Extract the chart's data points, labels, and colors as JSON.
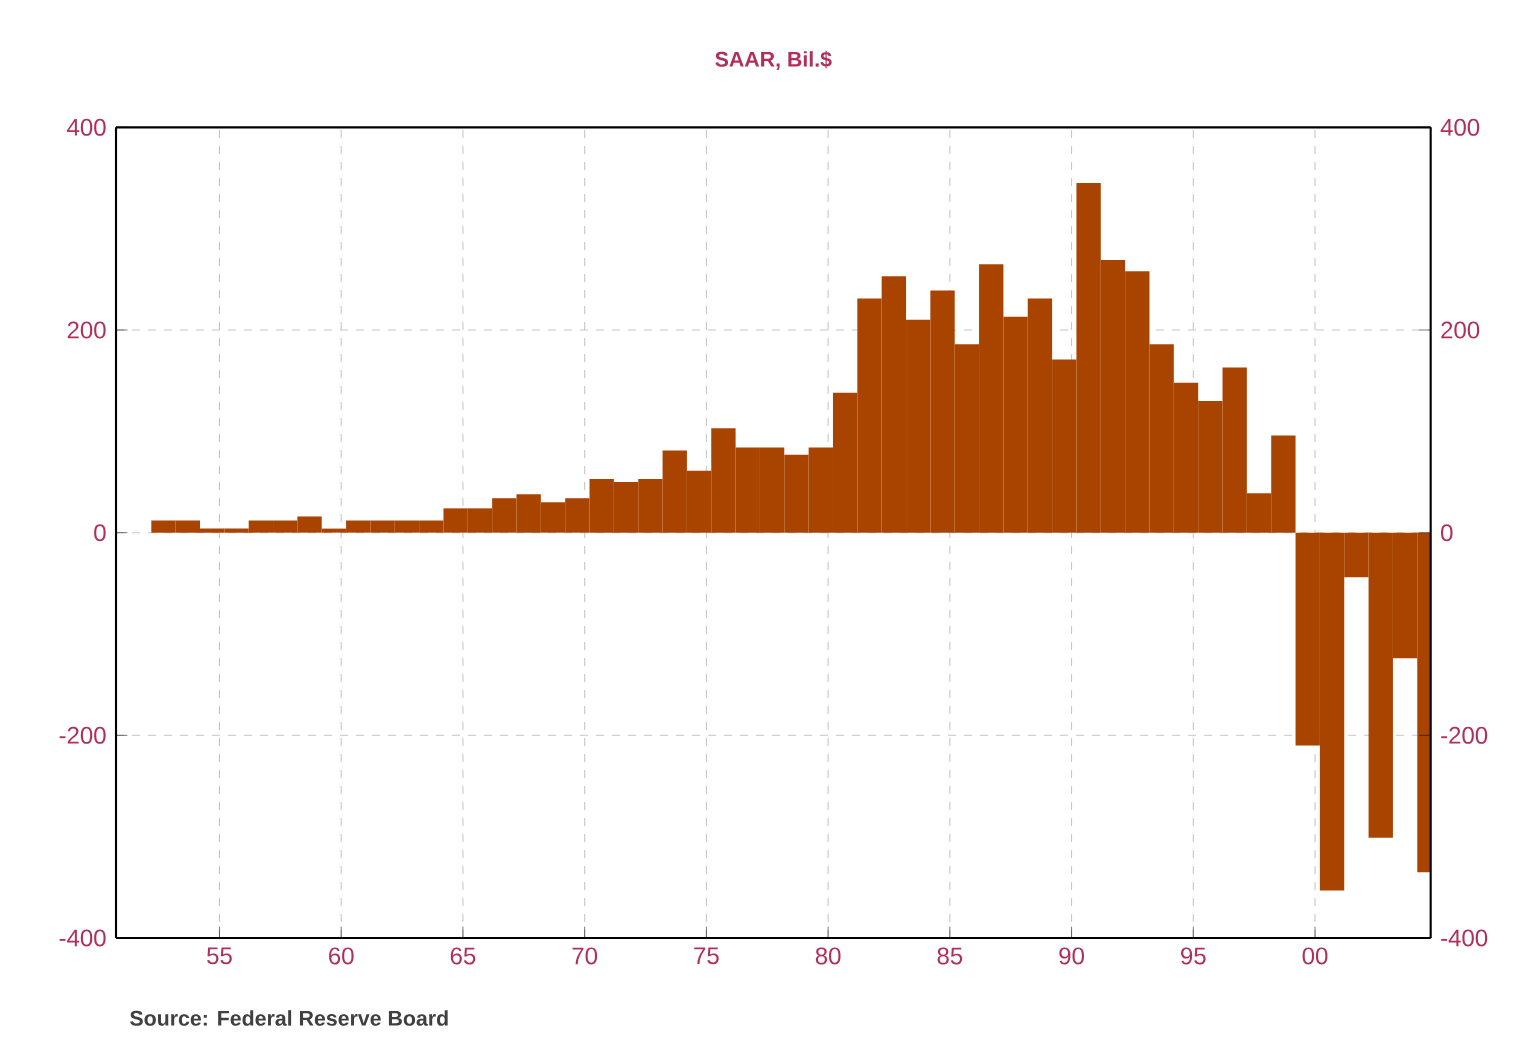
{
  "chart_data": {
    "type": "bar",
    "title": "SAAR, Bil.$",
    "annotations": [
      "Source:  Federal Reserve Board"
    ],
    "x": [
      1952.7,
      1953.7,
      1954.7,
      1955.7,
      1956.7,
      1957.7,
      1958.7,
      1959.7,
      1960.7,
      1961.7,
      1962.7,
      1963.7,
      1964.7,
      1965.7,
      1966.7,
      1967.7,
      1968.7,
      1969.7,
      1970.7,
      1971.7,
      1972.7,
      1973.7,
      1974.7,
      1975.7,
      1976.7,
      1977.7,
      1978.7,
      1979.7,
      1980.7,
      1981.7,
      1982.7,
      1983.7,
      1984.7,
      1985.7,
      1986.7,
      1987.7,
      1988.7,
      1989.7,
      1990.7,
      1991.7,
      1992.7,
      1993.7,
      1994.7,
      1995.7,
      1996.7,
      1997.7,
      1998.7,
      1999.7,
      2000.7,
      2001.7,
      2002.7,
      2003.7,
      2004.7
    ],
    "values": [
      12,
      12,
      4,
      4,
      12,
      12,
      16,
      4,
      12,
      12,
      12,
      12,
      24,
      24,
      34,
      38,
      30,
      34,
      53,
      50,
      53,
      81,
      61,
      103,
      84,
      84,
      77,
      84,
      138,
      231,
      253,
      210,
      239,
      186,
      265,
      213,
      231,
      171,
      345,
      269,
      258,
      186,
      148,
      130,
      163,
      39,
      96,
      -210,
      -353,
      -44,
      -301,
      -124,
      -335
    ],
    "color": "#a94400",
    "xlim": [
      1950.75,
      2004.75
    ],
    "xticks": [
      {
        "value": 1955,
        "label": "55"
      },
      {
        "value": 1960,
        "label": "60"
      },
      {
        "value": 1965,
        "label": "65"
      },
      {
        "value": 1970,
        "label": "70"
      },
      {
        "value": 1975,
        "label": "75"
      },
      {
        "value": 1980,
        "label": "80"
      },
      {
        "value": 1985,
        "label": "85"
      },
      {
        "value": 1990,
        "label": "90"
      },
      {
        "value": 1995,
        "label": "95"
      },
      {
        "value": 2000,
        "label": "00"
      }
    ],
    "ylim": [
      -400,
      400
    ],
    "yticks": [
      -400,
      -200,
      0,
      200,
      400
    ],
    "y2lim": [
      -400,
      400
    ],
    "y2ticks": [
      -400,
      -200,
      0,
      200,
      400
    ],
    "grid": true
  }
}
